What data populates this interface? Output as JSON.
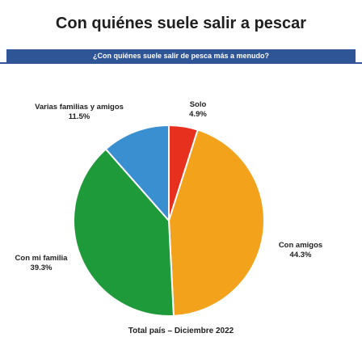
{
  "header": {
    "title": "Con quiénes suele salir a pescar",
    "subtitle": "¿Con quiénes suele salir de pesca más a menudo?"
  },
  "footer": {
    "note": "Total país – Diciembre 2022"
  },
  "chart_data": {
    "type": "pie",
    "title": "Con quiénes suele salir a pescar",
    "subtitle": "¿Con quiénes suele salir de pesca más a menudo?",
    "slices": [
      {
        "label": "Solo",
        "value": 4.9,
        "value_label": "4.9%",
        "color": "#e8301f"
      },
      {
        "label": "Con amigos",
        "value": 44.3,
        "value_label": "44.3%",
        "color": "#f2a21b"
      },
      {
        "label": "Con mi familia",
        "value": 39.3,
        "value_label": "39.3%",
        "color": "#1f9a3a"
      },
      {
        "label": "Varias familias y amigos",
        "value": 11.5,
        "value_label": "11.5%",
        "color": "#3a8fd0"
      }
    ],
    "start": "top",
    "direction": "clockwise",
    "legend": "none",
    "annotation": "Total país – Diciembre 2022"
  }
}
